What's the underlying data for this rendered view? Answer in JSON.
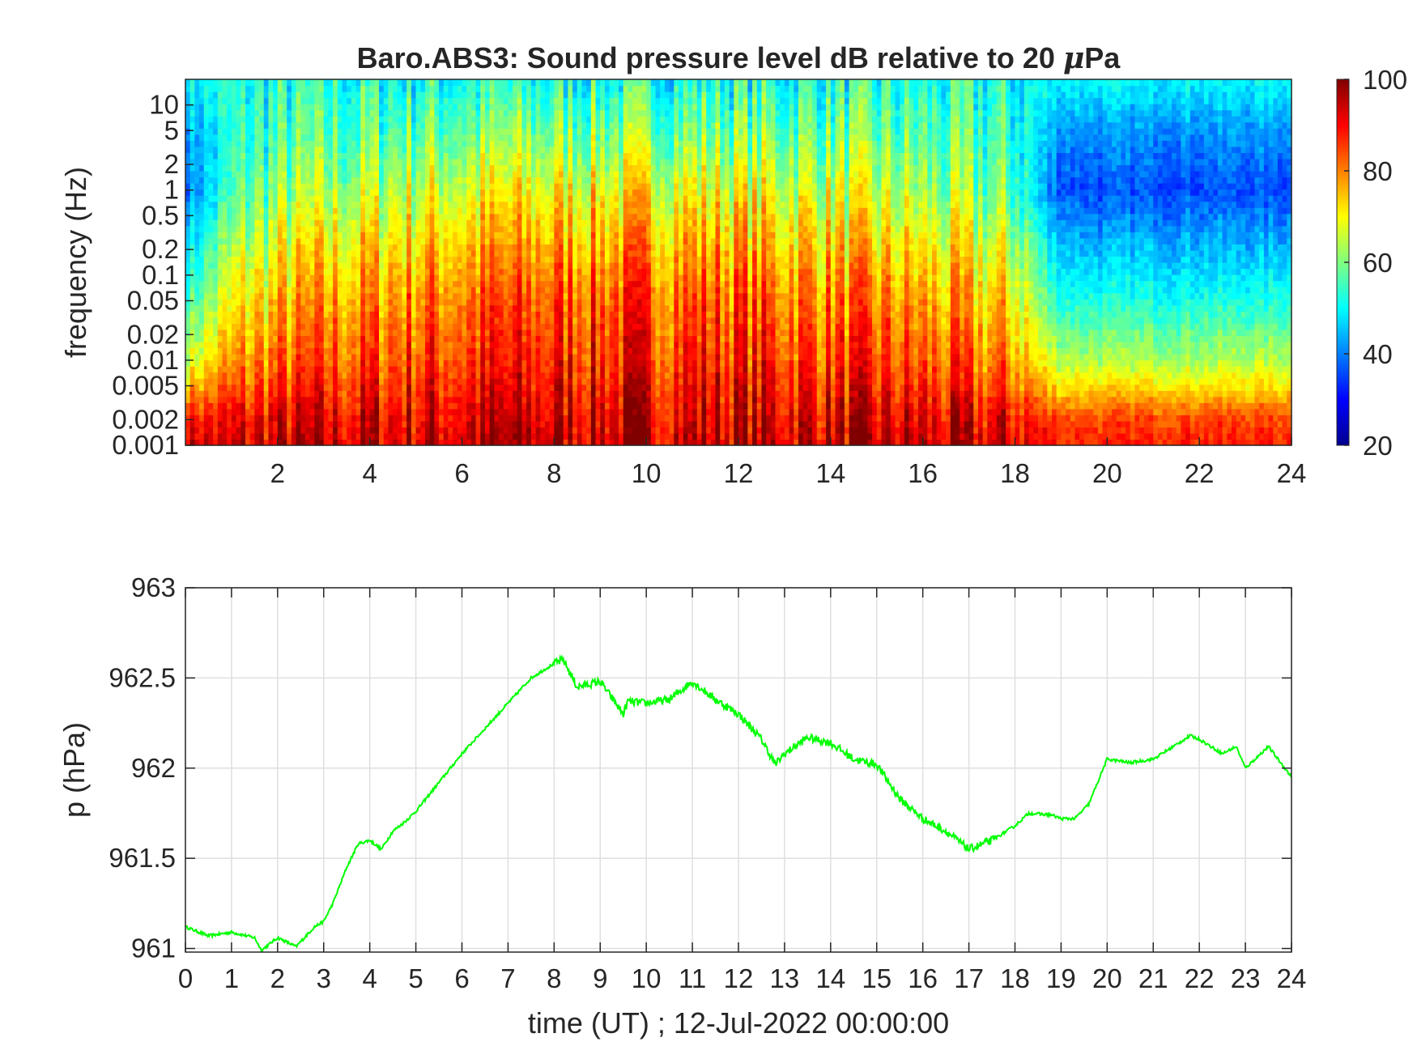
{
  "figure": {
    "xlabel": "time (UT) ; 12-Jul-2022 00:00:00"
  },
  "chart_data": [
    {
      "type": "heatmap",
      "title_prefix": "Baro.ABS3: Sound pressure level dB relative to 20 ",
      "title_symbol": "μ",
      "title_suffix": "Pa",
      "ylabel": "frequency (Hz)",
      "yscale": "log",
      "ylim": [
        0.001,
        20
      ],
      "yticks": [
        0.001,
        0.002,
        0.005,
        0.01,
        0.02,
        0.05,
        0.1,
        0.2,
        0.5,
        1,
        2,
        5,
        10
      ],
      "ytick_labels": [
        "0.001",
        "0.002",
        "0.005",
        "0.01",
        "0.02",
        "0.05",
        "0.1",
        "0.2",
        "0.5",
        "1",
        "2",
        "5",
        "10"
      ],
      "xlim": [
        0,
        24
      ],
      "xticks": [
        2,
        4,
        6,
        8,
        10,
        12,
        14,
        16,
        18,
        20,
        22,
        24
      ],
      "xtick_labels": [
        "2",
        "4",
        "6",
        "8",
        "10",
        "12",
        "14",
        "16",
        "18",
        "20",
        "22",
        "24"
      ],
      "colormap": "jet",
      "colorbar": {
        "limits": [
          20,
          100
        ],
        "ticks": [
          20,
          40,
          60,
          80,
          100
        ],
        "tick_labels": [
          "20",
          "40",
          "60",
          "80",
          "100"
        ]
      },
      "active_window_hours": [
        0.5,
        18.5
      ],
      "approx_level_profile": [
        {
          "frequency": 0.001,
          "quiet_db": 88,
          "active_db": 95
        },
        {
          "frequency": 0.002,
          "quiet_db": 85,
          "active_db": 93
        },
        {
          "frequency": 0.005,
          "quiet_db": 72,
          "active_db": 90
        },
        {
          "frequency": 0.01,
          "quiet_db": 64,
          "active_db": 88
        },
        {
          "frequency": 0.05,
          "quiet_db": 52,
          "active_db": 84
        },
        {
          "frequency": 0.2,
          "quiet_db": 45,
          "active_db": 78
        },
        {
          "frequency": 1,
          "quiet_db": 36,
          "active_db": 70
        },
        {
          "frequency": 5,
          "quiet_db": 42,
          "active_db": 60
        },
        {
          "frequency": 20,
          "quiet_db": 50,
          "active_db": 52
        }
      ]
    },
    {
      "type": "line",
      "ylabel": "p (hPa)",
      "ylim": [
        960.98,
        963
      ],
      "yticks": [
        961,
        961.5,
        962,
        962.5,
        963
      ],
      "ytick_labels": [
        "961",
        "961.5",
        "962",
        "962.5",
        "963"
      ],
      "xlim": [
        0,
        24
      ],
      "xticks": [
        0,
        1,
        2,
        3,
        4,
        5,
        6,
        7,
        8,
        9,
        10,
        11,
        12,
        13,
        14,
        15,
        16,
        17,
        18,
        19,
        20,
        21,
        22,
        23,
        24
      ],
      "xtick_labels": [
        "0",
        "1",
        "2",
        "3",
        "4",
        "5",
        "6",
        "7",
        "8",
        "9",
        "10",
        "11",
        "12",
        "13",
        "14",
        "15",
        "16",
        "17",
        "18",
        "19",
        "20",
        "21",
        "22",
        "23",
        "24"
      ],
      "grid": true,
      "series": [
        {
          "color": "#00ff00",
          "x": [
            0,
            0.5,
            1,
            1.5,
            1.65,
            2,
            2.4,
            2.8,
            3.0,
            3.2,
            3.5,
            3.75,
            4.0,
            4.25,
            4.5,
            4.75,
            5.0,
            5.5,
            6.0,
            6.5,
            7.0,
            7.5,
            8.0,
            8.2,
            8.5,
            9.0,
            9.5,
            9.6,
            10.0,
            10.5,
            11.0,
            11.5,
            12.0,
            12.5,
            12.8,
            13.0,
            13.5,
            14.0,
            14.5,
            15.0,
            15.5,
            16.0,
            16.5,
            17.0,
            17.5,
            18.0,
            18.3,
            18.8,
            19.0,
            19.3,
            19.6,
            20.0,
            20.5,
            21.0,
            21.5,
            21.8,
            22.0,
            22.5,
            22.8,
            23.0,
            23.5,
            24.0
          ],
          "y": [
            961.12,
            961.07,
            961.09,
            961.06,
            960.99,
            961.06,
            961.01,
            961.12,
            961.15,
            961.25,
            961.45,
            961.58,
            961.6,
            961.55,
            961.65,
            961.7,
            961.76,
            961.92,
            962.08,
            962.22,
            962.36,
            962.5,
            962.58,
            962.6,
            962.45,
            962.48,
            962.3,
            962.37,
            962.36,
            962.38,
            962.48,
            962.38,
            962.3,
            962.16,
            962.02,
            962.08,
            962.17,
            962.14,
            962.05,
            962.02,
            961.83,
            961.72,
            961.65,
            961.55,
            961.6,
            961.68,
            961.75,
            961.74,
            961.72,
            961.72,
            961.8,
            962.05,
            962.03,
            962.05,
            962.13,
            962.18,
            962.16,
            962.08,
            962.12,
            962.0,
            962.12,
            961.95
          ]
        }
      ]
    }
  ]
}
